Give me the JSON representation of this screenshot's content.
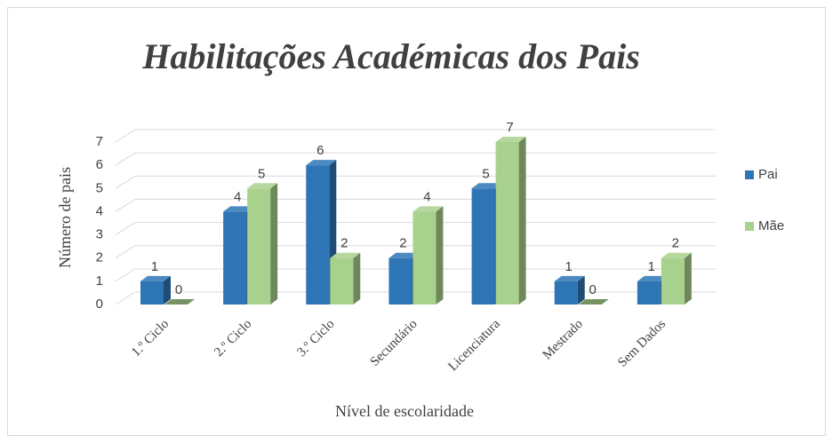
{
  "chart_data": {
    "type": "bar3d",
    "title": "Habilitações Académicas dos Pais",
    "x_label": "Nível de escolaridade",
    "y_label": "Número de pais",
    "categories": [
      "1.º Ciclo",
      "2.º Ciclo",
      "3.º Ciclo",
      "Secundário",
      "Licenciatura",
      "Mestrado",
      "Sem Dados"
    ],
    "series": [
      {
        "name": "Pai",
        "color": "#2e75b6",
        "values": [
          1,
          4,
          6,
          2,
          5,
          1,
          1
        ]
      },
      {
        "name": "Mãe",
        "color": "#a9d18e",
        "values": [
          0,
          5,
          2,
          4,
          7,
          0,
          2
        ]
      }
    ],
    "ylim": [
      0,
      7
    ],
    "yticks": [
      0,
      1,
      2,
      3,
      4,
      5,
      6,
      7
    ],
    "grid": true,
    "legend": "right"
  }
}
